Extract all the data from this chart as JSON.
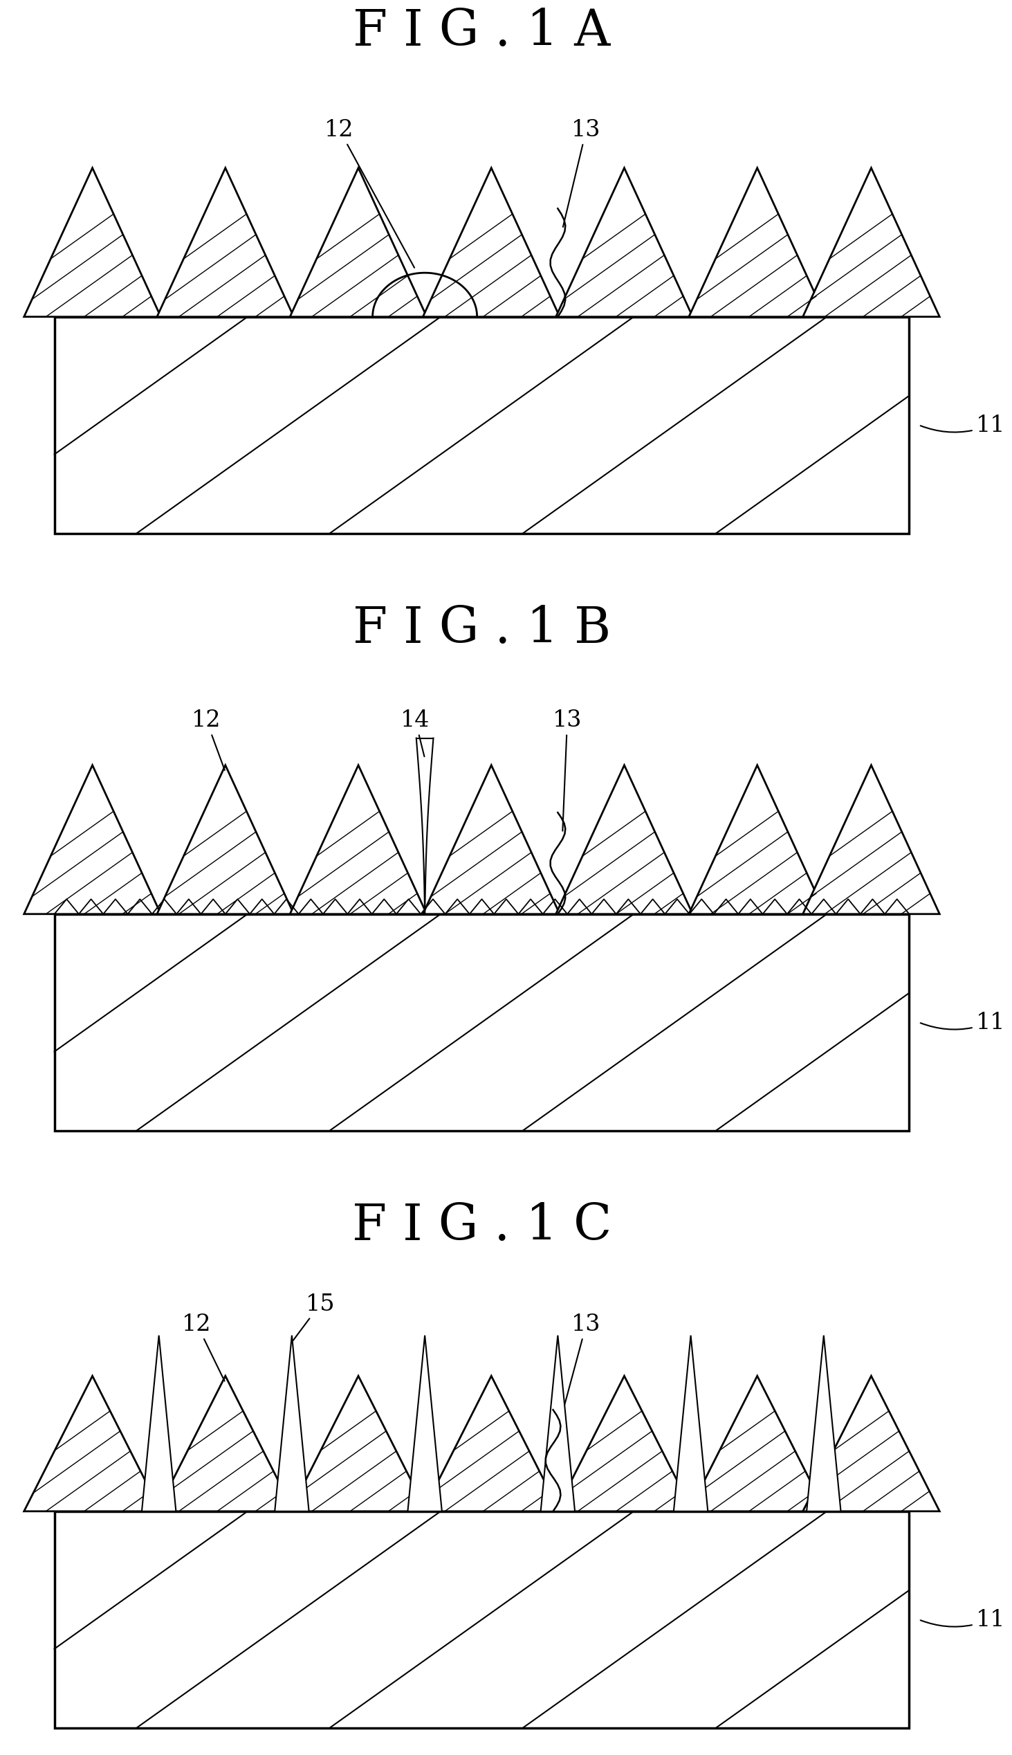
{
  "fig_titles": [
    "F I G . 1 A",
    "F I G . 1 B",
    "F I G . 1 C"
  ],
  "background_color": "#ffffff",
  "line_color": "#000000",
  "label_fontsize": 24,
  "title_fontsize": 52
}
